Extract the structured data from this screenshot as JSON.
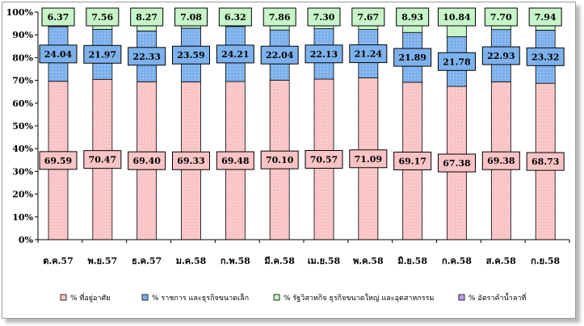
{
  "chart_data": {
    "type": "bar",
    "stacked": true,
    "percent": true,
    "categories": [
      "ต.ค.57",
      "พ.ย.57",
      "ธ.ค.57",
      "ม.ค.58",
      "ก.พ.58",
      "มี.ค.58",
      "เม.ย.58",
      "พ.ค.58",
      "มิ.ย.58",
      "ก.ค.58",
      "ส.ค.58",
      "ก.ย.58"
    ],
    "series": [
      {
        "name": "% ที่อยู่อาศัย",
        "color": "#f9c4c6",
        "values": [
          69.59,
          70.47,
          69.4,
          69.33,
          69.48,
          70.1,
          70.57,
          71.09,
          69.17,
          67.38,
          69.38,
          68.73
        ]
      },
      {
        "name": "% ราชการ และธุรกิจขนาดเล็ก",
        "color": "#7db1ec",
        "values": [
          24.04,
          21.97,
          22.33,
          23.59,
          24.21,
          22.04,
          22.13,
          21.24,
          21.89,
          21.78,
          22.93,
          23.32
        ]
      },
      {
        "name": "% รัฐวิสาหกิจ ธุรกิจขนาดใหญ่ และอุตสาหกรรม",
        "color": "#c7f4c8",
        "values": [
          6.37,
          7.56,
          8.27,
          7.08,
          6.32,
          7.86,
          7.3,
          7.67,
          8.93,
          10.84,
          7.7,
          7.94
        ]
      },
      {
        "name": "% อัตราค้าน้ำลาที่",
        "color": "#c49df0",
        "values": [
          0,
          0,
          0,
          0,
          0,
          0,
          0,
          0,
          0,
          0,
          0,
          0
        ]
      }
    ],
    "data_labels": {
      "s0": [
        "69.59",
        "70.47",
        "69.40",
        "69.33",
        "69.48",
        "70.10",
        "70.57",
        "71.09",
        "69.17",
        "67.38",
        "69.38",
        "68.73"
      ],
      "s1": [
        "24.04",
        "21.97",
        "22.33",
        "23.59",
        "24.21",
        "22.04",
        "22.13",
        "21.24",
        "21.89",
        "21.78",
        "22.93",
        "23.32"
      ],
      "s2": [
        "6.37",
        "7.56",
        "8.27",
        "7.08",
        "6.32",
        "7.86",
        "7.30",
        "7.67",
        "8.93",
        "10.84",
        "7.70",
        "7.94"
      ]
    },
    "yticks": [
      "0%",
      "10%",
      "20%",
      "30%",
      "40%",
      "50%",
      "60%",
      "70%",
      "80%",
      "90%",
      "100%"
    ],
    "ylim": [
      0,
      100
    ],
    "legend_position": "bottom"
  }
}
